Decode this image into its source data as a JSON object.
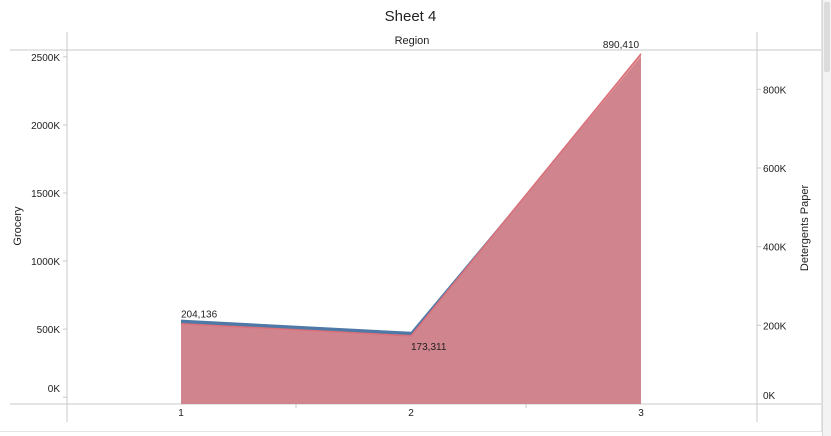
{
  "sheet": {
    "title": "Sheet 4",
    "header": "Region"
  },
  "colors": {
    "grocery": "#4e79a7",
    "detergents_paper": "#e8868a",
    "axis": "#c8c8c8",
    "text": "#222222"
  },
  "chart_data": {
    "type": "area",
    "title": "Sheet 4",
    "column_header": "Region",
    "x": [
      "1",
      "2",
      "3"
    ],
    "series": [
      {
        "name": "Grocery",
        "axis": "left",
        "values": [
          570000,
          480000,
          2500000
        ]
      },
      {
        "name": "Detergents Paper",
        "axis": "right",
        "values": [
          204136,
          173311,
          890410
        ]
      }
    ],
    "y_left": {
      "label": "Grocery",
      "ticks": [
        "0K",
        "500K",
        "1000K",
        "1500K",
        "2000K",
        "2500K"
      ],
      "tick_values": [
        0,
        500000,
        1000000,
        1500000,
        2000000,
        2500000
      ],
      "range": [
        -50000,
        2550000
      ]
    },
    "y_right": {
      "label": "Detergents Paper",
      "ticks": [
        "0K",
        "200K",
        "400K",
        "600K",
        "800K"
      ],
      "tick_values": [
        0,
        200000,
        400000,
        600000,
        800000
      ],
      "range": [
        0,
        900000
      ]
    },
    "data_labels": [
      "204,136",
      "173,311",
      "890,410"
    ],
    "grid": false
  }
}
